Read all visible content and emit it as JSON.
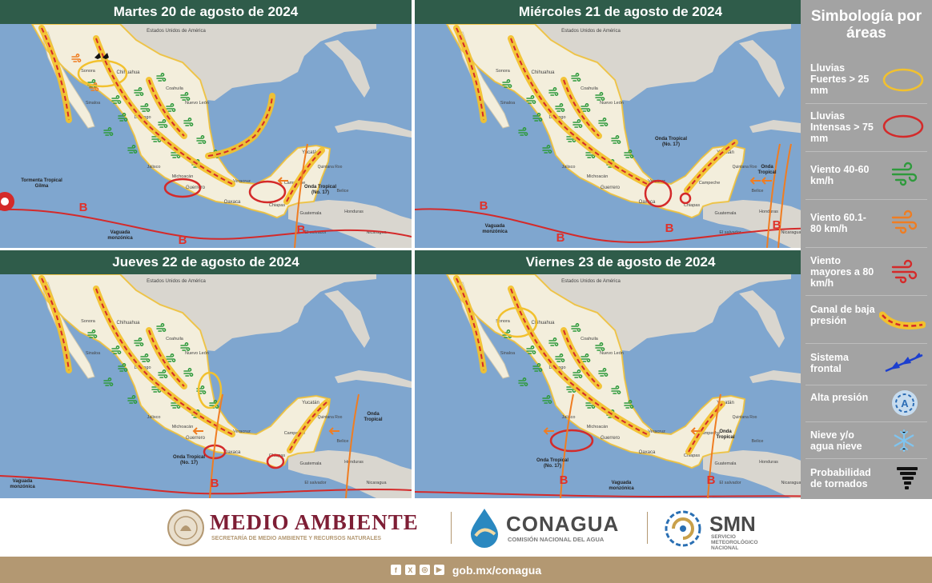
{
  "panels": [
    {
      "title": "Martes 20 de agosto de 2024"
    },
    {
      "title": "Miércoles 21 de agosto de 2024"
    },
    {
      "title": "Jueves 22 de agosto de 2024"
    },
    {
      "title": "Viernes 23 de agosto de 2024"
    }
  ],
  "map_labels": {
    "usa": "Estados Unidos de América",
    "chihuahua": "Chihuahua",
    "sonora": "Sonora",
    "coahuila": "Coahuila",
    "nuevo_leon": "Nuevo León",
    "durango": "Durango",
    "sinaloa": "Sinaloa",
    "jalisco": "Jalisco",
    "michoacan": "Michoacán",
    "guerrero": "Guerrero",
    "oaxaca": "Oaxaca",
    "veracruz": "Veracruz",
    "chiapas": "Chiapas",
    "campeche": "Campeche",
    "yucatan": "Yucatán",
    "quintana_roo": "Quintana Roo",
    "belice": "Belice",
    "guatemala": "Guatemala",
    "honduras": "Honduras",
    "nicaragua": "Nicaragua",
    "el_salvador": "El salvador",
    "b": "B",
    "tormenta_gilma": "Tormenta Tropical Gilma",
    "vaguada": "Vaguada monzónica",
    "onda17": "Onda Tropical (No. 17)",
    "onda": "Onda Tropical"
  },
  "legend": {
    "title": "Simbología por áreas",
    "items": [
      {
        "label": "Lluvias Fuertes > 25 mm",
        "icon": "yellow-ellipse-icon"
      },
      {
        "label": "Lluvias Intensas > 75 mm",
        "icon": "red-ellipse-icon"
      },
      {
        "label": "Viento 40-60 km/h",
        "icon": "green-wind-icon"
      },
      {
        "label": "Viento 60.1-80 km/h",
        "icon": "orange-wind-icon"
      },
      {
        "label": "Viento mayores a 80 km/h",
        "icon": "red-wind-icon"
      },
      {
        "label": "Canal de baja presión",
        "icon": "low-pressure-channel-icon"
      },
      {
        "label": "Sistema frontal",
        "icon": "front-system-icon"
      },
      {
        "label": "Alta presión",
        "icon": "high-pressure-icon"
      },
      {
        "label": "Nieve y/o agua nieve",
        "icon": "snowflake-icon"
      },
      {
        "label": "Probabilidad de tornados",
        "icon": "tornado-icon"
      }
    ]
  },
  "logos": {
    "medio_ambiente": "MEDIO AMBIENTE",
    "medio_ambiente_sub": "SECRETARÍA DE MEDIO AMBIENTE Y RECURSOS NATURALES",
    "conagua": "CONAGUA",
    "conagua_sub": "COMISIÓN NACIONAL DEL AGUA",
    "smn": "SMN",
    "smn_sub1": "SERVICIO",
    "smn_sub2": "METEOROLÓGICO",
    "smn_sub3": "NACIONAL"
  },
  "footer": {
    "url": "gob.mx/conagua"
  },
  "colors": {
    "header_bg": "#2f5c4a",
    "ocean": "#7fa6cf",
    "land_mexico": "#f3eedc",
    "land_other": "#d9d6cf",
    "yellow_area": "#f2c12e",
    "red_area": "#d42a2a",
    "wind_green": "#2e9a3c",
    "trough_red": "#d42a2a",
    "wave_orange": "#ef7d22",
    "legend_bg": "#a3a3a3",
    "footer_bg": "#b39872"
  }
}
